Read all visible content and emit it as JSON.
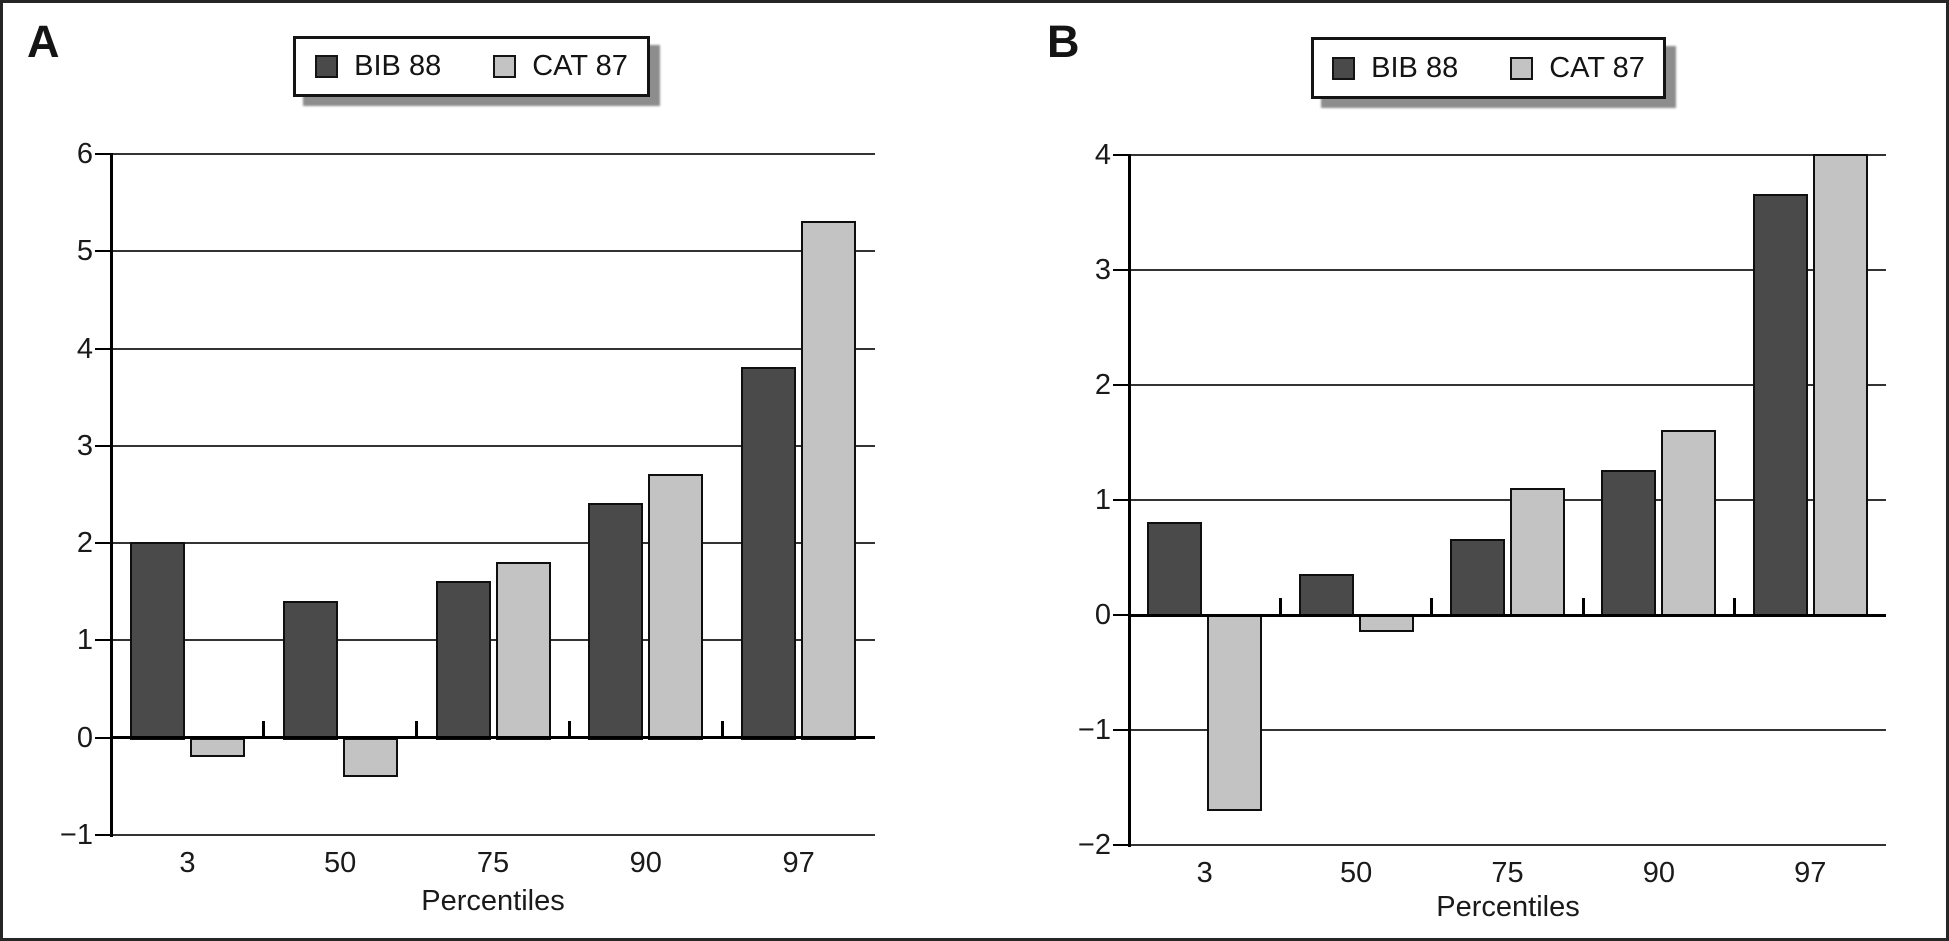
{
  "chart_data": [
    {
      "type": "bar",
      "panel": "A",
      "xlabel": "Percentiles",
      "categories": [
        "3",
        "50",
        "75",
        "90",
        "97"
      ],
      "series": [
        {
          "name": "BIB 88",
          "color": "#4a4a4a",
          "values": [
            2.0,
            1.4,
            1.6,
            2.4,
            3.8
          ]
        },
        {
          "name": "CAT 87",
          "color": "#c3c3c3",
          "values": [
            -0.2,
            -0.4,
            1.8,
            2.7,
            5.3
          ]
        }
      ],
      "ylim": [
        -1,
        6
      ],
      "yticks": [
        6,
        5,
        4,
        3,
        2,
        1,
        0,
        -1
      ],
      "ytick_labels": [
        "6",
        "5",
        "4",
        "3",
        "2",
        "1",
        "0",
        "−1"
      ],
      "grid": true,
      "legend_position": "top"
    },
    {
      "type": "bar",
      "panel": "B",
      "xlabel": "Percentiles",
      "categories": [
        "3",
        "50",
        "75",
        "90",
        "97"
      ],
      "series": [
        {
          "name": "BIB 88",
          "color": "#4a4a4a",
          "values": [
            0.8,
            0.35,
            0.65,
            1.25,
            3.65
          ]
        },
        {
          "name": "CAT 87",
          "color": "#c3c3c3",
          "values": [
            -1.7,
            -0.15,
            1.1,
            1.6,
            4.0
          ]
        }
      ],
      "ylim": [
        -2,
        4
      ],
      "yticks": [
        4,
        3,
        2,
        1,
        0,
        -1,
        -2
      ],
      "ytick_labels": [
        "4",
        "3",
        "2",
        "1",
        "0",
        "−1",
        "−2"
      ],
      "grid": true,
      "legend_position": "top"
    }
  ]
}
